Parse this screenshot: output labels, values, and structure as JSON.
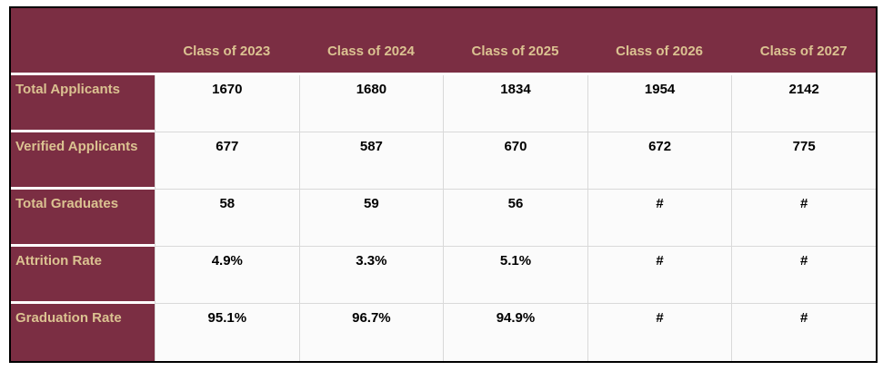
{
  "chart_data": {
    "type": "table",
    "title": "",
    "columns": [
      "Class of 2023",
      "Class of 2024",
      "Class of 2025",
      "Class of 2026",
      "Class of 2027"
    ],
    "rows": [
      {
        "label": "Total Applicants",
        "values": [
          "1670",
          "1680",
          "1834",
          "1954",
          "2142"
        ]
      },
      {
        "label": "Verified Applicants",
        "values": [
          "677",
          "587",
          "670",
          "672",
          "775"
        ]
      },
      {
        "label": "Total Graduates",
        "values": [
          "58",
          "59",
          "56",
          "#",
          "#"
        ]
      },
      {
        "label": "Attrition Rate",
        "values": [
          "4.9%",
          "3.3%",
          "5.1%",
          "#",
          "#"
        ]
      },
      {
        "label": "Graduation Rate",
        "values": [
          "95.1%",
          "96.7%",
          "94.9%",
          "#",
          "#"
        ]
      }
    ]
  },
  "colors": {
    "header-bg": "#7B2E43",
    "header-text": "#DBC291",
    "cell-bg": "#FBFBFB",
    "cell-border": "#D9D9D9",
    "outer-border": "#000000"
  }
}
